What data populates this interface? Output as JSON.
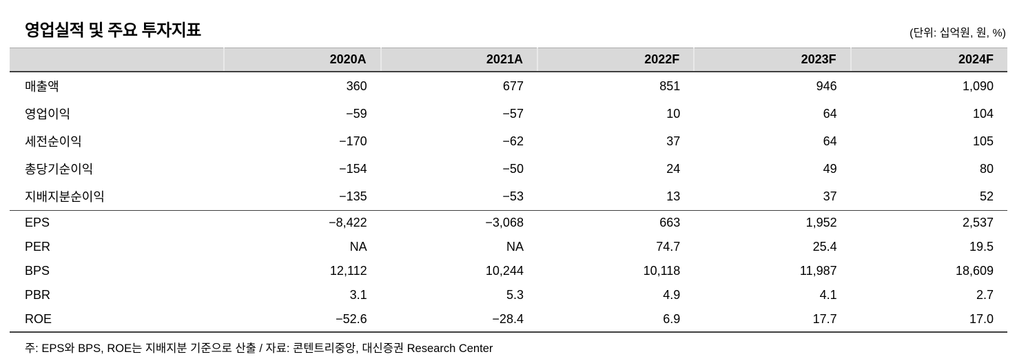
{
  "title": "영업실적 및 주요 투자지표",
  "unit_note": "(단위: 십억원, 원, %)",
  "table": {
    "columns": [
      "",
      "2020A",
      "2021A",
      "2022F",
      "2023F",
      "2024F"
    ],
    "g1": [
      {
        "label": "매출액",
        "values": [
          "360",
          "677",
          "851",
          "946",
          "1,090"
        ]
      },
      {
        "label": "영업이익",
        "values": [
          "−59",
          "−57",
          "10",
          "64",
          "104"
        ]
      },
      {
        "label": "세전순이익",
        "values": [
          "−170",
          "−62",
          "37",
          "64",
          "105"
        ]
      },
      {
        "label": "총당기순이익",
        "values": [
          "−154",
          "−50",
          "24",
          "49",
          "80"
        ]
      },
      {
        "label": "지배지분순이익",
        "values": [
          "−135",
          "−53",
          "13",
          "37",
          "52"
        ]
      }
    ],
    "g2": [
      {
        "label": "EPS",
        "values": [
          "−8,422",
          "−3,068",
          "663",
          "1,952",
          "2,537"
        ]
      },
      {
        "label": "PER",
        "values": [
          "NA",
          "NA",
          "74.7",
          "25.4",
          "19.5"
        ]
      },
      {
        "label": "BPS",
        "values": [
          "12,112",
          "10,244",
          "10,118",
          "11,987",
          "18,609"
        ]
      },
      {
        "label": "PBR",
        "values": [
          "3.1",
          "5.3",
          "4.9",
          "4.1",
          "2.7"
        ]
      },
      {
        "label": "ROE",
        "values": [
          "−52.6",
          "−28.4",
          "6.9",
          "17.7",
          "17.0"
        ]
      }
    ]
  },
  "footnote": "주: EPS와 BPS, ROE는 지배지분 기준으로 산출 / 자료: 콘텐트리중앙, 대신증권 Research Center"
}
